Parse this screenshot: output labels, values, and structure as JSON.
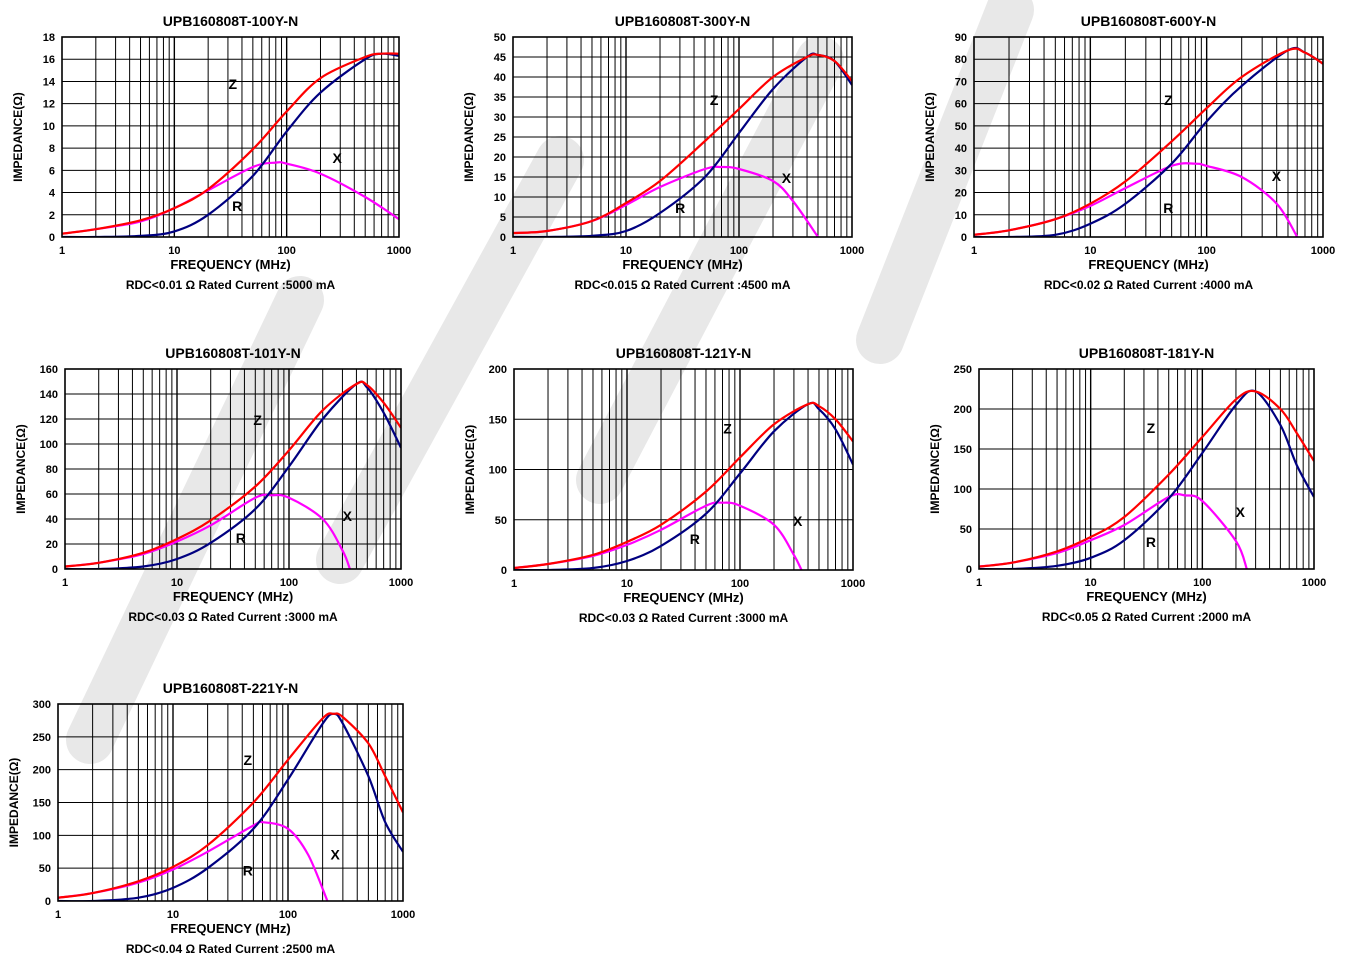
{
  "colors": {
    "Z": "#ff0000",
    "R": "#000080",
    "X": "#ff00ff",
    "grid": "#000000",
    "watermark": "#e8e8e8"
  },
  "chart_data": [
    {
      "type": "line",
      "title": "UPB160808T-100Y-N",
      "xlabel": "FREQUENCY (MHz)",
      "ylabel": "IMPEDANCE(Ω)",
      "footer": "RDC<0.01 Ω Rated Current :5000 mA",
      "xscale": "log",
      "xlim": [
        1,
        1000
      ],
      "ylim": [
        0,
        18
      ],
      "xticks": [
        "1",
        "10",
        "100",
        "1000"
      ],
      "yticks": [
        "0",
        "2",
        "4",
        "6",
        "8",
        "10",
        "12",
        "14",
        "16",
        "18"
      ],
      "curve_labels": {
        "Z": "Z",
        "R": "R",
        "X": "X"
      },
      "series": [
        {
          "name": "Z",
          "x": [
            1,
            2,
            5,
            10,
            20,
            50,
            100,
            200,
            500,
            700,
            1000
          ],
          "y": [
            0.3,
            0.7,
            1.5,
            2.6,
            4.3,
            7.9,
            11.3,
            14.3,
            16.2,
            16.5,
            16.5
          ]
        },
        {
          "name": "R",
          "x": [
            1,
            2,
            5,
            10,
            20,
            50,
            100,
            200,
            500,
            700,
            1000
          ],
          "y": [
            0,
            0,
            0.1,
            0.5,
            2,
            5.5,
            9.5,
            13,
            16,
            16.5,
            16.3
          ]
        },
        {
          "name": "X",
          "x": [
            1,
            2,
            5,
            10,
            20,
            50,
            80,
            100,
            200,
            500,
            1000
          ],
          "y": [
            0.3,
            0.7,
            1.4,
            2.6,
            4.2,
            6.3,
            6.7,
            6.6,
            5.7,
            3.6,
            1.6
          ]
        }
      ]
    },
    {
      "type": "line",
      "title": "UPB160808T-300Y-N",
      "xlabel": "FREQUENCY (MHz)",
      "ylabel": "IMPEDANCE(Ω)",
      "footer": "RDC<0.015 Ω Rated Current :4500 mA",
      "xscale": "log",
      "xlim": [
        1,
        1000
      ],
      "ylim": [
        0,
        50
      ],
      "xticks": [
        "1",
        "10",
        "100",
        "1000"
      ],
      "yticks": [
        "0",
        "5",
        "10",
        "15",
        "20",
        "25",
        "30",
        "35",
        "40",
        "45",
        "50"
      ],
      "curve_labels": {
        "Z": "Z",
        "R": "R",
        "X": "X"
      },
      "series": [
        {
          "name": "Z",
          "x": [
            1,
            2,
            5,
            10,
            20,
            50,
            100,
            200,
            400,
            500,
            700,
            1000
          ],
          "y": [
            1,
            1.5,
            4,
            8.5,
            14,
            24,
            32,
            40,
            45,
            45.5,
            44,
            39
          ]
        },
        {
          "name": "R",
          "x": [
            1,
            2,
            5,
            10,
            20,
            50,
            100,
            200,
            400,
            500,
            700,
            1000
          ],
          "y": [
            0,
            0,
            0.3,
            1.5,
            6,
            15,
            26,
            37,
            45,
            45.5,
            44,
            38
          ]
        },
        {
          "name": "X",
          "x": [
            1,
            2,
            5,
            10,
            20,
            50,
            70,
            100,
            200,
            300,
            500
          ],
          "y": [
            1,
            1.5,
            4,
            8,
            12.5,
            17,
            17.5,
            17,
            14,
            9,
            0
          ]
        }
      ]
    },
    {
      "type": "line",
      "title": "UPB160808T-600Y-N",
      "xlabel": "FREQUENCY (MHz)",
      "ylabel": "IMPEDANCE(Ω)",
      "footer": "RDC<0.02 Ω Rated Current :4000 mA",
      "xscale": "log",
      "xlim": [
        1,
        1000
      ],
      "ylim": [
        0,
        90
      ],
      "xticks": [
        "1",
        "10",
        "100",
        "1000"
      ],
      "yticks": [
        "0",
        "10",
        "20",
        "30",
        "40",
        "50",
        "60",
        "70",
        "80",
        "90"
      ],
      "curve_labels": {
        "Z": "Z",
        "R": "R",
        "X": "X"
      },
      "series": [
        {
          "name": "Z",
          "x": [
            1,
            2,
            5,
            10,
            20,
            50,
            100,
            200,
            500,
            700,
            1000
          ],
          "y": [
            1,
            3,
            8,
            15,
            25,
            43,
            58,
            72,
            84,
            83,
            78
          ]
        },
        {
          "name": "R",
          "x": [
            1,
            2,
            5,
            10,
            20,
            50,
            100,
            200,
            500,
            700,
            1000
          ],
          "y": [
            0,
            0,
            1,
            6,
            15,
            33,
            52,
            68,
            84,
            83,
            78
          ]
        },
        {
          "name": "X",
          "x": [
            1,
            2,
            5,
            10,
            20,
            50,
            80,
            100,
            200,
            400,
            600
          ],
          "y": [
            1,
            3,
            8,
            14,
            22,
            32,
            33,
            32,
            27,
            15,
            0
          ]
        }
      ]
    },
    {
      "type": "line",
      "title": "UPB160808T-101Y-N",
      "xlabel": "FREQUENCY (MHz)",
      "ylabel": "IMPEDANCE(Ω)",
      "footer": "RDC<0.03 Ω Rated Current :3000 mA",
      "xscale": "log",
      "xlim": [
        1,
        1000
      ],
      "ylim": [
        0,
        160
      ],
      "xticks": [
        "1",
        "10",
        "100",
        "1000"
      ],
      "yticks": [
        "0",
        "20",
        "40",
        "60",
        "80",
        "100",
        "120",
        "140",
        "160"
      ],
      "curve_labels": {
        "Z": "Z",
        "R": "R",
        "X": "X"
      },
      "series": [
        {
          "name": "Z",
          "x": [
            1,
            2,
            5,
            10,
            20,
            50,
            100,
            200,
            400,
            500,
            700,
            1000
          ],
          "y": [
            2,
            5,
            13,
            24,
            39,
            66,
            95,
            127,
            148,
            147,
            133,
            113
          ]
        },
        {
          "name": "R",
          "x": [
            1,
            2,
            5,
            10,
            20,
            50,
            100,
            200,
            400,
            500,
            700,
            1000
          ],
          "y": [
            0,
            0,
            2,
            8,
            21,
            48,
            82,
            120,
            148,
            145,
            125,
            97
          ]
        },
        {
          "name": "X",
          "x": [
            1,
            2,
            5,
            10,
            20,
            50,
            70,
            100,
            200,
            300,
            350
          ],
          "y": [
            2,
            5,
            12,
            22,
            35,
            57,
            59,
            57,
            40,
            15,
            0
          ]
        }
      ]
    },
    {
      "type": "line",
      "title": "UPB160808T-121Y-N",
      "xlabel": "FREQUENCY (MHz)",
      "ylabel": "IMPEDANCE(Ω)",
      "footer": "RDC<0.03 Ω Rated Current :3000 mA",
      "xscale": "log",
      "xlim": [
        1,
        1000
      ],
      "ylim": [
        0,
        200
      ],
      "xticks": [
        "1",
        "10",
        "100",
        "1000"
      ],
      "yticks": [
        "0",
        "50",
        "100",
        "150",
        "200"
      ],
      "curve_labels": {
        "Z": "Z",
        "R": "R",
        "X": "X"
      },
      "series": [
        {
          "name": "Z",
          "x": [
            1,
            2,
            5,
            10,
            20,
            50,
            100,
            200,
            400,
            500,
            700,
            1000
          ],
          "y": [
            2,
            6,
            15,
            28,
            45,
            78,
            112,
            145,
            165,
            163,
            150,
            128
          ]
        },
        {
          "name": "R",
          "x": [
            1,
            2,
            5,
            10,
            20,
            50,
            100,
            200,
            400,
            500,
            700,
            1000
          ],
          "y": [
            0,
            0,
            2,
            9,
            24,
            56,
            96,
            138,
            165,
            160,
            140,
            105
          ]
        },
        {
          "name": "X",
          "x": [
            1,
            2,
            5,
            10,
            20,
            50,
            70,
            100,
            200,
            300,
            350
          ],
          "y": [
            2,
            6,
            14,
            25,
            40,
            64,
            67,
            64,
            45,
            15,
            0
          ]
        }
      ]
    },
    {
      "type": "line",
      "title": "UPB160808T-181Y-N",
      "xlabel": "FREQUENCY (MHz)",
      "ylabel": "IMPEDANCE(Ω)",
      "footer": "RDC<0.05 Ω Rated Current :2000 mA",
      "xscale": "log",
      "xlim": [
        1,
        1000
      ],
      "ylim": [
        0,
        250
      ],
      "xticks": [
        "1",
        "10",
        "100",
        "1000"
      ],
      "yticks": [
        "0",
        "50",
        "100",
        "150",
        "200",
        "250"
      ],
      "curve_labels": {
        "Z": "Z",
        "R": "R",
        "X": "X"
      },
      "series": [
        {
          "name": "Z",
          "x": [
            1,
            2,
            5,
            10,
            20,
            50,
            100,
            200,
            300,
            500,
            700,
            1000
          ],
          "y": [
            3,
            8,
            22,
            40,
            65,
            118,
            165,
            212,
            222,
            200,
            170,
            135
          ]
        },
        {
          "name": "R",
          "x": [
            1,
            2,
            5,
            10,
            20,
            50,
            100,
            200,
            300,
            500,
            700,
            1000
          ],
          "y": [
            0,
            0,
            4,
            14,
            36,
            88,
            145,
            205,
            222,
            180,
            130,
            90
          ]
        },
        {
          "name": "X",
          "x": [
            1,
            2,
            5,
            10,
            20,
            50,
            70,
            100,
            200,
            250
          ],
          "y": [
            3,
            8,
            20,
            36,
            55,
            90,
            92,
            85,
            35,
            0
          ]
        }
      ]
    },
    {
      "type": "line",
      "title": "UPB160808T-221Y-N",
      "xlabel": "FREQUENCY (MHz)",
      "ylabel": "IMPEDANCE(Ω)",
      "footer": "RDC<0.04 Ω Rated Current :2500 mA",
      "xscale": "log",
      "xlim": [
        1,
        1000
      ],
      "ylim": [
        0,
        300
      ],
      "xticks": [
        "1",
        "10",
        "100",
        "1000"
      ],
      "yticks": [
        "0",
        "50",
        "100",
        "150",
        "200",
        "250",
        "300"
      ],
      "curve_labels": {
        "Z": "Z",
        "R": "R",
        "X": "X"
      },
      "series": [
        {
          "name": "Z",
          "x": [
            1,
            2,
            5,
            10,
            20,
            50,
            100,
            200,
            250,
            300,
            500,
            700,
            1000
          ],
          "y": [
            5,
            12,
            30,
            52,
            85,
            150,
            215,
            278,
            285,
            280,
            240,
            190,
            135
          ]
        },
        {
          "name": "R",
          "x": [
            1,
            2,
            5,
            10,
            20,
            50,
            100,
            200,
            250,
            300,
            500,
            700,
            1000
          ],
          "y": [
            0,
            0,
            5,
            20,
            50,
            110,
            185,
            270,
            285,
            270,
            190,
            120,
            75
          ]
        },
        {
          "name": "X",
          "x": [
            1,
            2,
            5,
            10,
            20,
            50,
            60,
            100,
            150,
            220
          ],
          "y": [
            5,
            12,
            28,
            48,
            75,
            115,
            120,
            110,
            70,
            0
          ]
        }
      ]
    }
  ]
}
